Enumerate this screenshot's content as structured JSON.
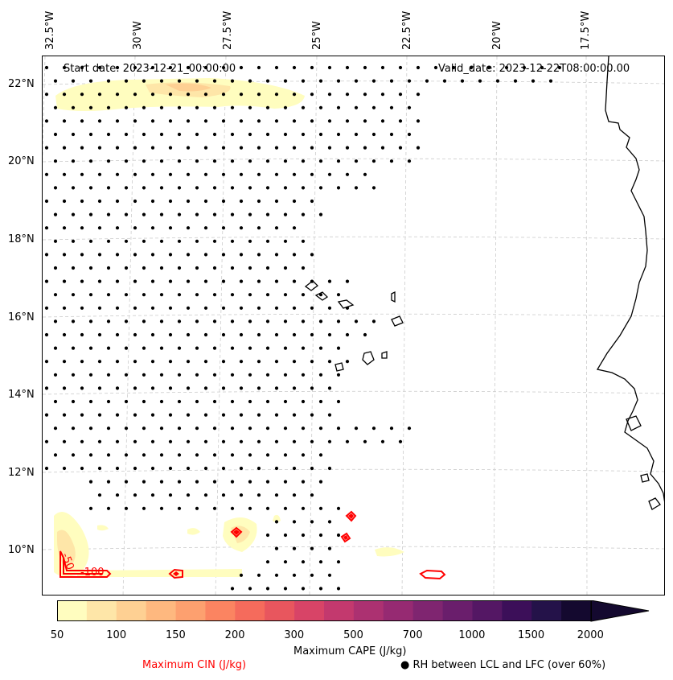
{
  "header": {
    "start_date": "Start date: 2023-12-21_00:00:00",
    "valid_date": "Valid_date: 2023-12-22T08:00:00.00"
  },
  "axes": {
    "lon_labels": [
      "32.5°W",
      "30°W",
      "27.5°W",
      "25°W",
      "22.5°W",
      "20°W",
      "17.5°W"
    ],
    "lat_labels": [
      "22°N",
      "20°N",
      "18°N",
      "16°N",
      "14°N",
      "12°N",
      "10°N"
    ]
  },
  "colorbar": {
    "label": "Maximum CAPE (J/kg)",
    "ticks": [
      "50",
      "100",
      "150",
      "200",
      "300",
      "500",
      "700",
      "1000",
      "1500",
      "2000"
    ],
    "colors": [
      "#fffdbf",
      "#fee6a8",
      "#fed093",
      "#feb87f",
      "#fda06f",
      "#fb8461",
      "#f56b5c",
      "#e8565e",
      "#d84467",
      "#c3396e",
      "#ac3171",
      "#962a72",
      "#7f2570",
      "#6a1e6c",
      "#541764",
      "#3c0f59",
      "#241249",
      "#14092f"
    ]
  },
  "legend": {
    "cin_label": "Maximum CIN (J/kg)",
    "rh_label": "RH between LCL and LFC (over 60%)",
    "rh_marker": "●"
  },
  "contour_labels": {
    "c50": "-50",
    "c100": "-100"
  },
  "colors": {
    "cin_contour": "#ff0000",
    "cape_low": "#fffdbf",
    "cape_mid": "#fee6a8",
    "cape_higher": "#fed093",
    "coast": "#000000",
    "grid": "#cccccc"
  }
}
